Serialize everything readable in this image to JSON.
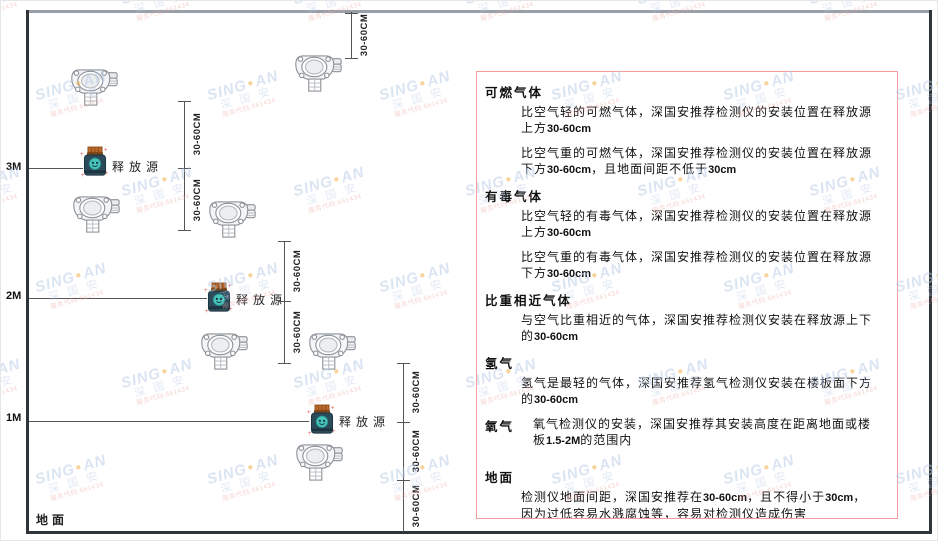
{
  "diagram": {
    "axis": {
      "m3": "3M",
      "m2": "2M",
      "m1": "1M",
      "ground_label": "地面"
    },
    "release_source_label": "释放源",
    "dim_label": "30-60CM"
  },
  "panel": {
    "sections": [
      {
        "title": "可燃气体",
        "paras": [
          "比空气轻的可燃气体，深国安推荐检测仪的安装位置在释放源上方30-60cm",
          "比空气重的可燃气体，深国安推荐检测仪的安装位置在释放源下方30-60cm，且地面间距不低于30cm"
        ]
      },
      {
        "title": "有毒气体",
        "paras": [
          "比空气轻的有毒气体，深国安推荐检测仪的安装位置在释放源上方30-60cm",
          "比空气重的有毒气体，深国安推荐检测仪的安装位置在释放源下方30-60cm"
        ]
      },
      {
        "title": "比重相近气体",
        "paras": [
          "与空气比重相近的气体，深国安推荐检测仪安装在释放源上下的30-60cm"
        ]
      },
      {
        "title": "氢气",
        "paras": [
          "氢气是最轻的气体，深国安推荐氢气检测仪安装在楼板面下方的30-60cm"
        ]
      },
      {
        "title": "氧气",
        "paras": [
          "氧气检测仪的安装，深国安推荐其安装高度在距离地面或楼板1.5-2M的范围内"
        ]
      },
      {
        "title": "地面",
        "paras": [
          "检测仪地面间距，深国安推荐在30-60cm，且不得小于30cm，因为过低容易水溅腐蚀等，容易对检测仪造成伤害"
        ]
      }
    ]
  },
  "watermark": {
    "brand_prefix": "SING",
    "brand_suffix": "AN",
    "cjk": "深 国 安",
    "code": "服务代码:661434"
  },
  "colors": {
    "panel_border": "#f29b9b",
    "watermark_blue": "#b7cbe7",
    "brand_dot_orange": "#f2a83c",
    "source_body": "#2b4a5a",
    "source_cap": "#b96a28",
    "source_emblem": "#45c4bc"
  }
}
